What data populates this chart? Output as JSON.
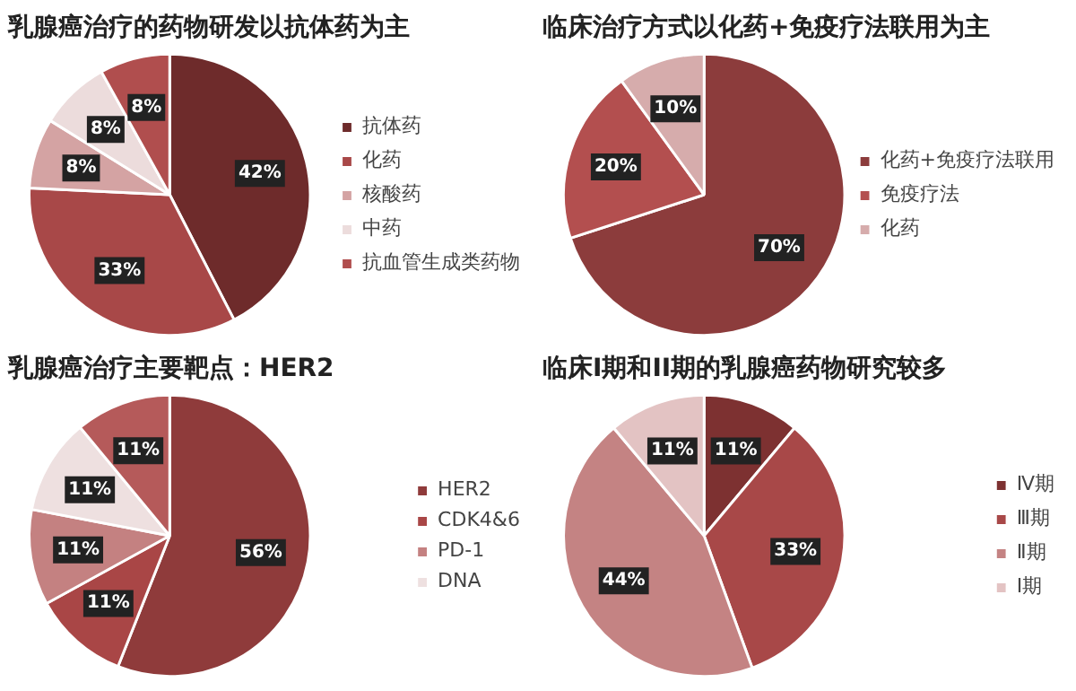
{
  "chart_data": [
    {
      "type": "pie",
      "title": "乳腺癌治疗的药物研发以抗体药为主",
      "categories": [
        "抗体药",
        "化药",
        "核酸药",
        "中药",
        "抗血管生成类药物"
      ],
      "values": [
        42,
        33,
        8,
        8,
        8
      ],
      "colors": [
        "#6e2b2b",
        "#a84848",
        "#d4a3a3",
        "#ecdcdc",
        "#b04e4e"
      ],
      "value_labels": [
        "42%",
        "33%",
        "8%",
        "8%",
        "8%"
      ],
      "legend": "right"
    },
    {
      "type": "pie",
      "title": "临床治疗方式以化药+免疫疗法联用为主",
      "categories": [
        "化药+免疫疗法联用",
        "免疫疗法",
        "化药"
      ],
      "values": [
        70,
        20,
        10
      ],
      "colors": [
        "#8c3c3c",
        "#b34f4f",
        "#d6acac"
      ],
      "value_labels": [
        "70%",
        "20%",
        "10%"
      ],
      "legend": "right"
    },
    {
      "type": "pie",
      "title": "乳腺癌治疗主要靶点：HER2",
      "categories": [
        "HER2",
        "CDK4&6",
        "PD-1",
        "DNA",
        null
      ],
      "values": [
        56,
        11,
        11,
        11,
        11
      ],
      "colors": [
        "#8f3b3b",
        "#a94646",
        "#c48181",
        "#eee0e0",
        "#b55a5a"
      ],
      "value_labels": [
        "56%",
        "11%",
        "11%",
        "11%",
        "11%"
      ],
      "legend": "right"
    },
    {
      "type": "pie",
      "title": "临床I期和II期的乳腺癌药物研究较多",
      "categories": [
        "Ⅳ期",
        "Ⅲ期",
        "Ⅱ期",
        "Ⅰ期"
      ],
      "values": [
        11,
        33,
        44,
        11
      ],
      "colors": [
        "#7d3131",
        "#a84848",
        "#c48383",
        "#e3c3c3"
      ],
      "value_labels": [
        "11%",
        "33%",
        "44%",
        "11%"
      ],
      "legend": "right"
    }
  ]
}
